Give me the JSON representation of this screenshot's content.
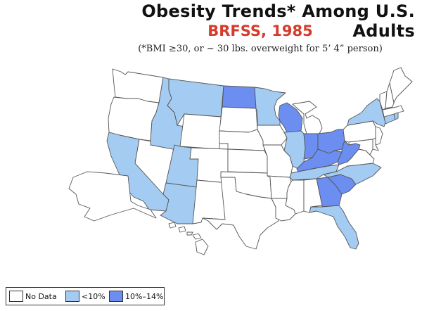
{
  "header": {
    "title": "Obesity Trends* Among U.S. Adults",
    "subtitle": "BRFSS, 1985",
    "note": "(*BMI ≥30, or ~ 30 lbs. overweight for 5’ 4” person)"
  },
  "colors": {
    "no_data": "#ffffff",
    "lt10": "#a4cbf2",
    "p10_14": "#6b8ef0",
    "border": "#555555"
  },
  "legend": [
    {
      "label": "No Data",
      "category": "no_data"
    },
    {
      "label": "<10%",
      "category": "lt10"
    },
    {
      "label": "10%–14%",
      "category": "p10_14"
    }
  ],
  "states": {
    "WA": "no_data",
    "OR": "no_data",
    "CA": "lt10",
    "NV": "no_data",
    "ID": "lt10",
    "MT": "lt10",
    "WY": "no_data",
    "UT": "lt10",
    "AZ": "lt10",
    "CO": "no_data",
    "NM": "no_data",
    "ND": "p10_14",
    "SD": "no_data",
    "NE": "no_data",
    "KS": "no_data",
    "OK": "no_data",
    "TX": "no_data",
    "MN": "lt10",
    "IA": "no_data",
    "MO": "no_data",
    "AR": "no_data",
    "LA": "no_data",
    "WI": "p10_14",
    "IL": "lt10",
    "MI": "no_data",
    "IN": "p10_14",
    "OH": "p10_14",
    "KY": "p10_14",
    "TN": "lt10",
    "MS": "no_data",
    "AL": "no_data",
    "GA": "p10_14",
    "FL": "lt10",
    "SC": "p10_14",
    "NC": "lt10",
    "VA": "no_data",
    "WV": "p10_14",
    "PA": "no_data",
    "NY": "lt10",
    "NJ": "no_data",
    "DE": "no_data",
    "MD": "no_data",
    "CT": "lt10",
    "RI": "lt10",
    "MA": "no_data",
    "VT": "no_data",
    "NH": "no_data",
    "ME": "no_data",
    "AK": "no_data",
    "HI": "no_data"
  }
}
